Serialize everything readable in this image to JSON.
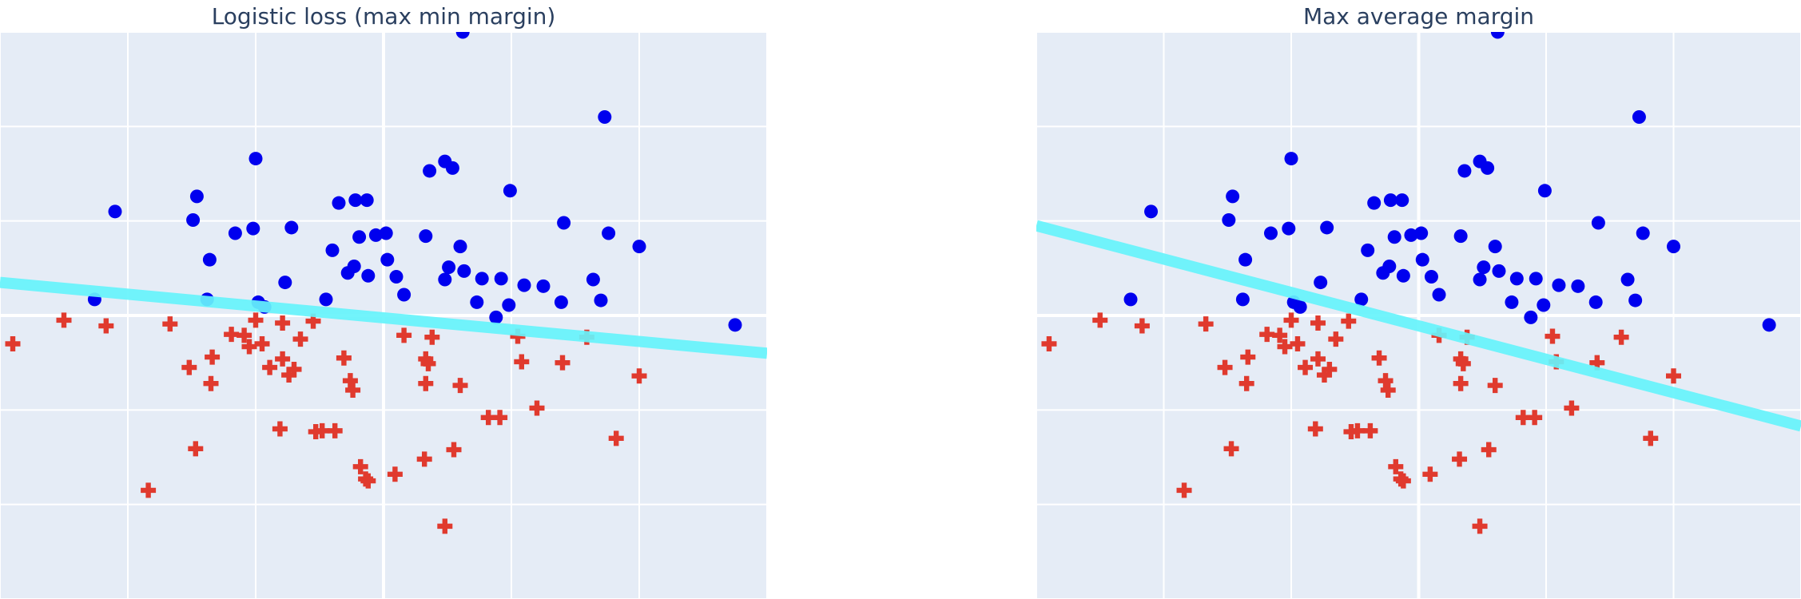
{
  "colors": {
    "plot_bg": "#e5ecf6",
    "grid": "#ffffff",
    "positive_marker": "#0000ee",
    "negative_marker": "#e03a2e",
    "boundary": "#66f3fb",
    "title": "#2a3f5f"
  },
  "chart_data": [
    {
      "type": "scatter",
      "title": "Logistic loss (max min margin)",
      "xlabel": "",
      "ylabel": "",
      "xlim": [
        -3.0,
        3.0
      ],
      "ylim": [
        -3.0,
        3.0
      ],
      "grid": true,
      "legend": "none",
      "boundary_line": {
        "x": [
          -3.0,
          3.0
        ],
        "y": [
          0.35,
          -0.4
        ],
        "color": "cyan"
      },
      "series": [
        {
          "marker": "circle",
          "color": "blue",
          "points": [
            [
              0.62,
              3.0
            ],
            [
              1.73,
              2.1
            ],
            [
              -2.1,
              1.1
            ],
            [
              -1.46,
              1.26
            ],
            [
              -1.0,
              1.66
            ],
            [
              -0.22,
              1.22
            ],
            [
              -0.13,
              1.22
            ],
            [
              0.36,
              1.53
            ],
            [
              0.48,
              1.63
            ],
            [
              0.54,
              1.56
            ],
            [
              -0.35,
              1.19
            ],
            [
              -1.49,
              1.01
            ],
            [
              -1.16,
              0.87
            ],
            [
              -1.02,
              0.92
            ],
            [
              -1.36,
              0.59
            ],
            [
              -0.72,
              0.93
            ],
            [
              -0.4,
              0.69
            ],
            [
              -0.19,
              0.83
            ],
            [
              -0.06,
              0.85
            ],
            [
              0.02,
              0.87
            ],
            [
              0.33,
              0.84
            ],
            [
              0.51,
              0.51
            ],
            [
              0.6,
              0.73
            ],
            [
              0.99,
              1.32
            ],
            [
              0.77,
              0.39
            ],
            [
              1.41,
              0.98
            ],
            [
              1.76,
              0.87
            ],
            [
              2.0,
              0.73
            ],
            [
              -0.12,
              0.42
            ],
            [
              -0.98,
              0.14
            ],
            [
              -0.93,
              0.09
            ],
            [
              -2.26,
              0.17
            ],
            [
              -0.28,
              0.45
            ],
            [
              -0.23,
              0.52
            ],
            [
              0.03,
              0.59
            ],
            [
              0.1,
              0.41
            ],
            [
              0.16,
              0.22
            ],
            [
              0.48,
              0.38
            ],
            [
              0.63,
              0.47
            ],
            [
              0.73,
              0.14
            ],
            [
              0.92,
              0.39
            ],
            [
              0.88,
              -0.02
            ],
            [
              0.98,
              0.11
            ],
            [
              1.1,
              0.32
            ],
            [
              1.25,
              0.31
            ],
            [
              1.39,
              0.14
            ],
            [
              1.64,
              0.38
            ],
            [
              1.7,
              0.16
            ],
            [
              2.75,
              -0.1
            ],
            [
              -1.38,
              0.17
            ],
            [
              -0.77,
              0.35
            ],
            [
              -0.45,
              0.17
            ]
          ]
        },
        {
          "marker": "cross",
          "color": "red",
          "points": [
            [
              -2.9,
              -0.3
            ],
            [
              -2.5,
              -0.05
            ],
            [
              -2.17,
              -0.11
            ],
            [
              -1.67,
              -0.09
            ],
            [
              -1.52,
              -0.55
            ],
            [
              -1.34,
              -0.44
            ],
            [
              -1.35,
              -0.72
            ],
            [
              -1.19,
              -0.2
            ],
            [
              -1.09,
              -0.21
            ],
            [
              -1.0,
              -0.05
            ],
            [
              -1.05,
              -0.33
            ],
            [
              -0.95,
              -0.3
            ],
            [
              -0.89,
              -0.55
            ],
            [
              -0.79,
              -0.46
            ],
            [
              -0.74,
              -0.63
            ],
            [
              -0.79,
              -0.08
            ],
            [
              -0.7,
              -0.57
            ],
            [
              -0.65,
              -0.25
            ],
            [
              -0.55,
              -0.06
            ],
            [
              -0.31,
              -0.45
            ],
            [
              -0.26,
              -0.69
            ],
            [
              -0.24,
              -0.79
            ],
            [
              0.16,
              -0.21
            ],
            [
              0.33,
              -0.46
            ],
            [
              0.35,
              -0.51
            ],
            [
              0.38,
              -0.23
            ],
            [
              0.33,
              -0.72
            ],
            [
              0.6,
              -0.74
            ],
            [
              1.05,
              -0.22
            ],
            [
              1.08,
              -0.49
            ],
            [
              1.4,
              -0.5
            ],
            [
              2.0,
              -0.64
            ],
            [
              0.82,
              -1.08
            ],
            [
              0.91,
              -1.08
            ],
            [
              1.2,
              -0.98
            ],
            [
              -1.47,
              -1.41
            ],
            [
              -0.81,
              -1.2
            ],
            [
              -0.53,
              -1.23
            ],
            [
              -0.48,
              -1.22
            ],
            [
              -0.38,
              -1.22
            ],
            [
              -0.18,
              -1.6
            ],
            [
              -0.14,
              -1.73
            ],
            [
              -0.12,
              -1.75
            ],
            [
              0.09,
              -1.68
            ],
            [
              0.32,
              -1.52
            ],
            [
              0.55,
              -1.42
            ],
            [
              -1.84,
              -1.85
            ],
            [
              1.82,
              -1.3
            ],
            [
              0.48,
              -2.23
            ],
            [
              1.59,
              -0.23
            ]
          ]
        }
      ]
    },
    {
      "type": "scatter",
      "title": "Max average margin",
      "xlabel": "",
      "ylabel": "",
      "xlim": [
        -3.0,
        3.0
      ],
      "ylim": [
        -3.0,
        3.0
      ],
      "grid": true,
      "legend": "none",
      "boundary_line": {
        "x": [
          -3.0,
          3.0
        ],
        "y": [
          0.95,
          -1.17
        ],
        "color": "cyan"
      },
      "series": [
        {
          "marker": "circle",
          "color": "blue",
          "points": [
            [
              0.62,
              3.0
            ],
            [
              1.73,
              2.1
            ],
            [
              -2.1,
              1.1
            ],
            [
              -1.46,
              1.26
            ],
            [
              -1.0,
              1.66
            ],
            [
              -0.22,
              1.22
            ],
            [
              -0.13,
              1.22
            ],
            [
              0.36,
              1.53
            ],
            [
              0.48,
              1.63
            ],
            [
              0.54,
              1.56
            ],
            [
              -0.35,
              1.19
            ],
            [
              -1.49,
              1.01
            ],
            [
              -1.16,
              0.87
            ],
            [
              -1.02,
              0.92
            ],
            [
              -1.36,
              0.59
            ],
            [
              -0.72,
              0.93
            ],
            [
              -0.4,
              0.69
            ],
            [
              -0.19,
              0.83
            ],
            [
              -0.06,
              0.85
            ],
            [
              0.02,
              0.87
            ],
            [
              0.33,
              0.84
            ],
            [
              0.51,
              0.51
            ],
            [
              0.6,
              0.73
            ],
            [
              0.99,
              1.32
            ],
            [
              0.77,
              0.39
            ],
            [
              1.41,
              0.98
            ],
            [
              1.76,
              0.87
            ],
            [
              2.0,
              0.73
            ],
            [
              -0.12,
              0.42
            ],
            [
              -0.98,
              0.14
            ],
            [
              -0.93,
              0.09
            ],
            [
              -2.26,
              0.17
            ],
            [
              -0.28,
              0.45
            ],
            [
              -0.23,
              0.52
            ],
            [
              0.03,
              0.59
            ],
            [
              0.1,
              0.41
            ],
            [
              0.16,
              0.22
            ],
            [
              0.48,
              0.38
            ],
            [
              0.63,
              0.47
            ],
            [
              0.73,
              0.14
            ],
            [
              0.92,
              0.39
            ],
            [
              0.88,
              -0.02
            ],
            [
              0.98,
              0.11
            ],
            [
              1.1,
              0.32
            ],
            [
              1.25,
              0.31
            ],
            [
              1.39,
              0.14
            ],
            [
              1.64,
              0.38
            ],
            [
              1.7,
              0.16
            ],
            [
              2.75,
              -0.1
            ],
            [
              -1.38,
              0.17
            ],
            [
              -0.77,
              0.35
            ],
            [
              -0.45,
              0.17
            ]
          ]
        },
        {
          "marker": "cross",
          "color": "red",
          "points": [
            [
              -2.9,
              -0.3
            ],
            [
              -2.5,
              -0.05
            ],
            [
              -2.17,
              -0.11
            ],
            [
              -1.67,
              -0.09
            ],
            [
              -1.52,
              -0.55
            ],
            [
              -1.34,
              -0.44
            ],
            [
              -1.35,
              -0.72
            ],
            [
              -1.19,
              -0.2
            ],
            [
              -1.09,
              -0.21
            ],
            [
              -1.0,
              -0.05
            ],
            [
              -1.05,
              -0.33
            ],
            [
              -0.95,
              -0.3
            ],
            [
              -0.89,
              -0.55
            ],
            [
              -0.79,
              -0.46
            ],
            [
              -0.74,
              -0.63
            ],
            [
              -0.79,
              -0.08
            ],
            [
              -0.7,
              -0.57
            ],
            [
              -0.65,
              -0.25
            ],
            [
              -0.55,
              -0.06
            ],
            [
              -0.31,
              -0.45
            ],
            [
              -0.26,
              -0.69
            ],
            [
              -0.24,
              -0.79
            ],
            [
              0.16,
              -0.21
            ],
            [
              0.33,
              -0.46
            ],
            [
              0.35,
              -0.51
            ],
            [
              0.38,
              -0.23
            ],
            [
              0.33,
              -0.72
            ],
            [
              0.6,
              -0.74
            ],
            [
              1.05,
              -0.22
            ],
            [
              1.08,
              -0.49
            ],
            [
              1.4,
              -0.5
            ],
            [
              2.0,
              -0.64
            ],
            [
              0.82,
              -1.08
            ],
            [
              0.91,
              -1.08
            ],
            [
              1.2,
              -0.98
            ],
            [
              -1.47,
              -1.41
            ],
            [
              -0.81,
              -1.2
            ],
            [
              -0.53,
              -1.23
            ],
            [
              -0.48,
              -1.22
            ],
            [
              -0.38,
              -1.22
            ],
            [
              -0.18,
              -1.6
            ],
            [
              -0.14,
              -1.73
            ],
            [
              -0.12,
              -1.75
            ],
            [
              0.09,
              -1.68
            ],
            [
              0.32,
              -1.52
            ],
            [
              0.55,
              -1.42
            ],
            [
              -1.84,
              -1.85
            ],
            [
              1.82,
              -1.3
            ],
            [
              0.48,
              -2.23
            ],
            [
              1.59,
              -0.23
            ]
          ]
        }
      ]
    }
  ]
}
